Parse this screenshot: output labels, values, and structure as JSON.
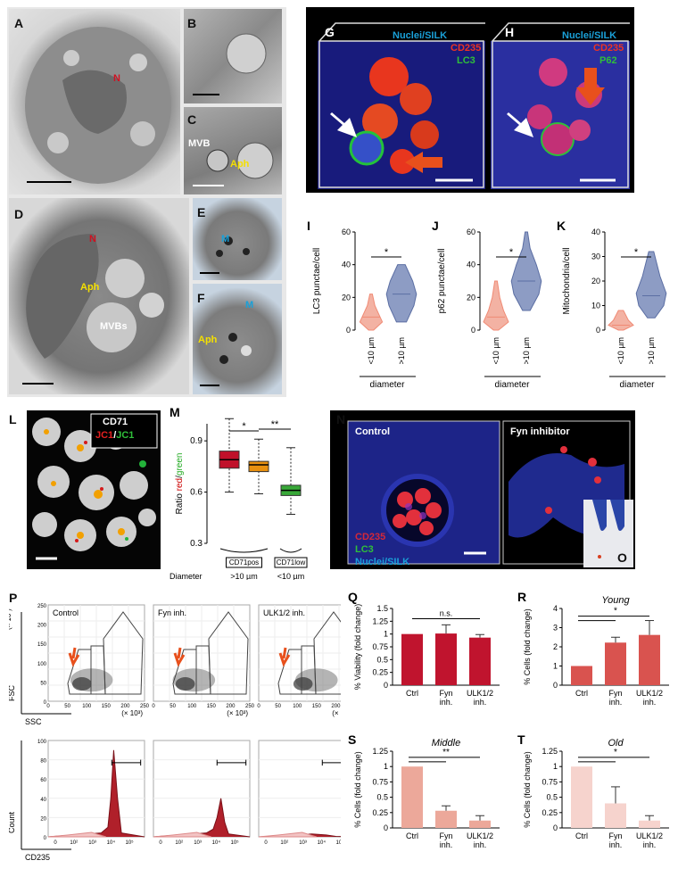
{
  "panels": {
    "A": {
      "label": "A",
      "N": "N"
    },
    "B": {
      "label": "B"
    },
    "C": {
      "label": "C",
      "MVB": "MVB",
      "Aph": "Aph"
    },
    "D": {
      "label": "D",
      "N": "N",
      "Aph": "Aph",
      "MVBs": "MVBs"
    },
    "E": {
      "label": "E",
      "M": "M"
    },
    "F": {
      "label": "F",
      "M": "M",
      "Aph": "Aph"
    },
    "G": {
      "label": "G",
      "l1": "Nuclei/SILK",
      "l2": "CD235",
      "l3": "LC3"
    },
    "H": {
      "label": "H",
      "l1": "Nuclei/SILK",
      "l2": "CD235",
      "l3": "P62"
    },
    "L": {
      "label": "L",
      "l1": "CD71",
      "l2a": "JC1",
      "l2b": "JC1"
    },
    "N": {
      "label": "N",
      "left": "Control",
      "right": "Fyn inhibitor",
      "l1": "CD235",
      "l2": "LC3",
      "l3": "Nuclei/SILK"
    },
    "O": {
      "label": "O"
    },
    "P": {
      "label": "P",
      "titles": [
        "Control",
        "Fyn inh.",
        "ULK1/2 inh."
      ],
      "fsc": "FSC",
      "ssc": "SSC",
      "count": "Count",
      "cd235": "CD235",
      "y_unit": "(× 10³)",
      "x_unit": "(× 10³)",
      "y_ticks": [
        "250",
        "200",
        "150",
        "100",
        "50",
        "0"
      ],
      "x_ticks": [
        "0",
        "50",
        "100",
        "150",
        "200",
        "250"
      ],
      "h_yticks": [
        "100",
        "80",
        "60",
        "40",
        "20",
        "0"
      ],
      "h_xticks": [
        "0",
        "10²",
        "10³",
        "10⁴",
        "10⁵"
      ]
    }
  },
  "violins": {
    "I": {
      "label": "I",
      "ylabel": "LC3 punctae/cell",
      "yticks": [
        "60",
        "40",
        "20",
        "0"
      ],
      "ymax": 60,
      "cats": [
        "<10 µm",
        ">10 µm"
      ],
      "xlabel": "diameter",
      "sig": "*"
    },
    "J": {
      "label": "J",
      "ylabel": "p62 punctae/cell",
      "yticks": [
        "60",
        "40",
        "20",
        "0"
      ],
      "ymax": 60,
      "cats": [
        "<10 µm",
        ">10 µm"
      ],
      "xlabel": "diameter",
      "sig": "*"
    },
    "K": {
      "label": "K",
      "ylabel": "Mitochondria/cell",
      "yticks": [
        "40",
        "30",
        "20",
        "10",
        "0"
      ],
      "ymax": 40,
      "cats": [
        "<10 µm",
        ">10 µm"
      ],
      "xlabel": "diameter",
      "sig": "*"
    }
  },
  "chart_data": [
    {
      "panel": "M",
      "type": "box",
      "ylabel": "Ratio red/green",
      "ylim": [
        0.3,
        1.0
      ],
      "yticks": [
        "0.9",
        "0.6",
        "0.3"
      ],
      "boxes": [
        {
          "min": 0.6,
          "q1": 0.74,
          "median": 0.79,
          "q3": 0.84,
          "max": 1.03,
          "color": "#c0102a"
        },
        {
          "min": 0.59,
          "q1": 0.72,
          "median": 0.76,
          "q3": 0.78,
          "max": 0.91,
          "color": "#e8900f"
        },
        {
          "min": 0.47,
          "q1": 0.58,
          "median": 0.61,
          "q3": 0.64,
          "max": 0.86,
          "color": "#38a838"
        }
      ],
      "groups": [
        "CD71pos",
        "CD71low"
      ],
      "diameter": "Diameter",
      ">10": ">10 µm",
      "<10": "<10 µm",
      "sig": [
        "*",
        "**"
      ]
    },
    {
      "panel": "Q",
      "type": "bar",
      "ylabel": "% Viability (fold change)",
      "categories": [
        "Ctrl",
        "Fyn inh.",
        "ULK1/2 inh."
      ],
      "values": [
        1.0,
        1.01,
        0.93
      ],
      "errors": [
        0,
        0.17,
        0.06
      ],
      "ylim": [
        0,
        1.5
      ],
      "yticks": [
        "1.5",
        "1.25",
        "1",
        "0.75",
        "0.5",
        "0.25",
        "0"
      ],
      "color": "#c0142e",
      "sig": "n.s."
    },
    {
      "panel": "R",
      "type": "bar",
      "title": "Young",
      "ylabel": "% Cells (fold change)",
      "categories": [
        "Ctrl",
        "Fyn inh.",
        "ULK1/2 inh."
      ],
      "values": [
        1.0,
        2.22,
        2.62
      ],
      "errors": [
        0,
        0.28,
        0.75
      ],
      "ylim": [
        0,
        4
      ],
      "yticks": [
        "4",
        "3",
        "2",
        "1",
        "0"
      ],
      "color": "#d9534f",
      "sig": "*"
    },
    {
      "panel": "S",
      "type": "bar",
      "title": "Middle",
      "ylabel": "% Cells (fold change)",
      "categories": [
        "Ctrl",
        "Fyn inh.",
        "ULK1/2 inh."
      ],
      "values": [
        1.0,
        0.28,
        0.12
      ],
      "errors": [
        0,
        0.08,
        0.08
      ],
      "ylim": [
        0,
        1.25
      ],
      "yticks": [
        "1.25",
        "1",
        "0.75",
        "0.5",
        "0.25",
        "0"
      ],
      "color": "#eca89a",
      "sig": "**"
    },
    {
      "panel": "T",
      "type": "bar",
      "title": "Old",
      "ylabel": "% Cells (fold change)",
      "categories": [
        "Ctrl",
        "Fyn inh.",
        "ULK1/2 inh."
      ],
      "values": [
        1.0,
        0.4,
        0.12
      ],
      "errors": [
        0,
        0.27,
        0.08
      ],
      "ylim": [
        0,
        1.25
      ],
      "yticks": [
        "1.25",
        "1",
        "0.75",
        "0.5",
        "0.25",
        "0"
      ],
      "color": "#f6d3cd",
      "sig": "*"
    }
  ]
}
